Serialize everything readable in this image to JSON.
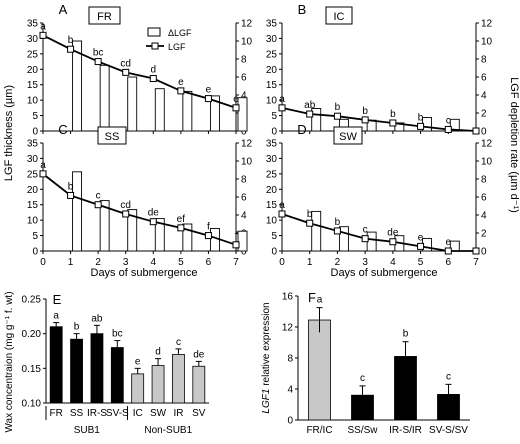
{
  "axis_labels": {
    "left_y": "LGF thickness (µm)",
    "right_y": "LGF depletion rate (µm d⁻¹)",
    "x_bottom": "Days of submergence",
    "panel_e_y": "Wax concentraion (mg g⁻¹ f. wt)",
    "panel_f_y_italic": "LGF1",
    "panel_f_y_rest": " relative expression"
  },
  "legend": {
    "bar": "ΔLGF",
    "line": "LGF"
  },
  "chart_data": [
    {
      "panel": "A",
      "box_label": "FR",
      "type": "bar+line",
      "x": [
        0,
        1,
        2,
        3,
        4,
        5,
        6,
        7
      ],
      "line_LGF": [
        31,
        26.5,
        22.5,
        19,
        17,
        13,
        10.5,
        7.5
      ],
      "letters": [
        "a",
        "b",
        "bc",
        "cd",
        "d",
        "e",
        "e",
        "e"
      ],
      "bars_dLGF": {
        "x": [
          1,
          2,
          3,
          4,
          5,
          6,
          7
        ],
        "values": [
          10,
          7.3,
          6,
          4.7,
          4.4,
          3.9,
          3.7
        ]
      },
      "ylim_left": [
        0,
        35
      ],
      "ylim_right": [
        0,
        12
      ],
      "xlim": [
        0,
        7
      ]
    },
    {
      "panel": "B",
      "box_label": "IC",
      "type": "bar+line",
      "x": [
        0,
        1,
        2,
        3,
        4,
        5,
        6,
        7
      ],
      "line_LGF": [
        7.5,
        5.5,
        4.8,
        3.6,
        2.6,
        1.5,
        0.5,
        0
      ],
      "letters": [
        "a",
        "ab",
        "b",
        "b",
        "b",
        "b",
        "c",
        ""
      ],
      "bars_dLGF": {
        "x": [
          1,
          2,
          3,
          4,
          5,
          6,
          7
        ],
        "values": [
          2.5,
          1.3,
          1.2,
          0.9,
          1.5,
          1.3,
          0
        ]
      },
      "ylim_left": [
        0,
        35
      ],
      "ylim_right": [
        0,
        12
      ],
      "xlim": [
        0,
        7
      ]
    },
    {
      "panel": "C",
      "box_label": "SS",
      "type": "bar+line",
      "x": [
        0,
        1,
        2,
        3,
        4,
        5,
        6,
        7
      ],
      "line_LGF": [
        25,
        18,
        15,
        12,
        9.5,
        7.5,
        5,
        2
      ],
      "letters": [
        "a",
        "b",
        "c",
        "cd",
        "de",
        "ef",
        "f",
        "f"
      ],
      "bars_dLGF": {
        "x": [
          1,
          2,
          3,
          4,
          5,
          6,
          7
        ],
        "values": [
          8.8,
          5.6,
          4.6,
          3.6,
          3,
          2.5,
          2.2
        ]
      },
      "ylim_left": [
        0,
        35
      ],
      "ylim_right": [
        0,
        12
      ],
      "xlim": [
        0,
        7
      ]
    },
    {
      "panel": "D",
      "box_label": "SW",
      "type": "bar+line",
      "x": [
        0,
        1,
        2,
        3,
        4,
        5,
        6,
        7
      ],
      "line_LGF": [
        12,
        9,
        6.5,
        4,
        3,
        1.5,
        0,
        0
      ],
      "letters": [
        "a",
        "b",
        "b",
        "c",
        "de",
        "e",
        "e",
        ""
      ],
      "bars_dLGF": {
        "x": [
          1,
          2,
          3,
          4,
          5,
          6,
          7
        ],
        "values": [
          4.4,
          2.7,
          2.1,
          1.7,
          1.4,
          1.1,
          0
        ]
      },
      "ylim_left": [
        0,
        35
      ],
      "ylim_right": [
        0,
        12
      ],
      "xlim": [
        0,
        7
      ]
    },
    {
      "panel": "E",
      "type": "bar",
      "categories": [
        "FR",
        "SS",
        "IR-S",
        "SV-S",
        "IC",
        "SW",
        "IR",
        "SV"
      ],
      "values": [
        0.21,
        0.192,
        0.2,
        0.18,
        0.142,
        0.154,
        0.17,
        0.153
      ],
      "errors": [
        0.006,
        0.008,
        0.012,
        0.01,
        0.008,
        0.01,
        0.008,
        0.007
      ],
      "letters": [
        "a",
        "b",
        "ab",
        "bc",
        "e",
        "d",
        "c",
        "de"
      ],
      "groups": [
        "SUB1",
        "Non-SUB1"
      ],
      "ylim": [
        0.1,
        0.25
      ]
    },
    {
      "panel": "F",
      "type": "bar",
      "categories": [
        "FR/IC",
        "SS/Sw",
        "IR-S/IR",
        "SV-S/SV"
      ],
      "values": [
        12.9,
        3.2,
        8.2,
        3.3
      ],
      "errors": [
        1.6,
        1.2,
        1.9,
        1.3
      ],
      "letters": [
        "a",
        "c",
        "b",
        "c"
      ],
      "ylim": [
        0,
        16
      ]
    }
  ]
}
